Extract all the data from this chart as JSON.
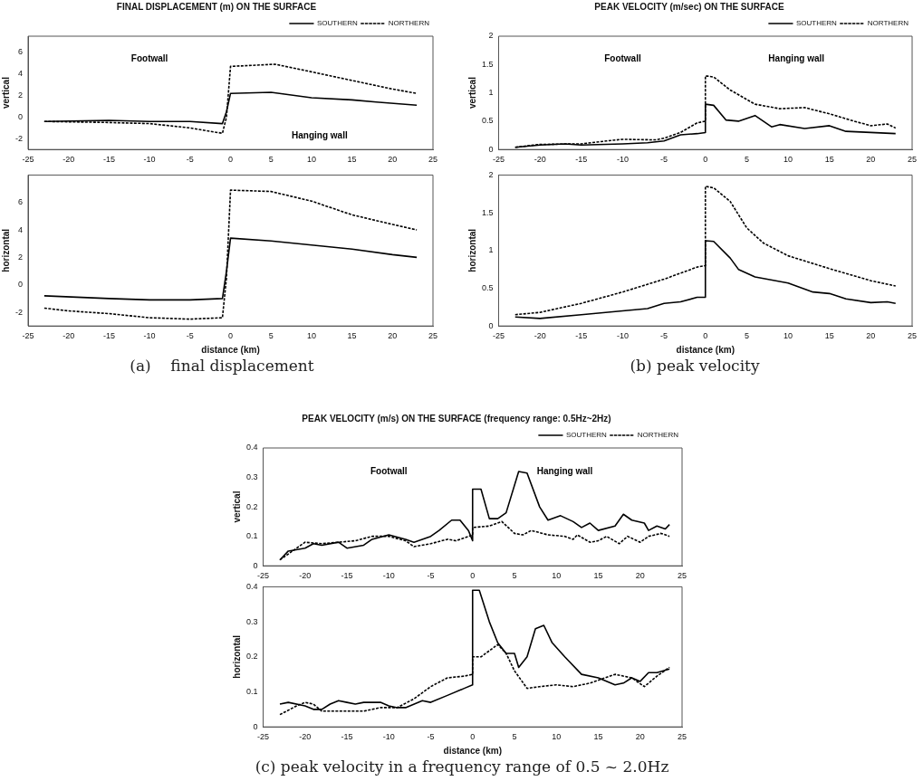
{
  "chart_data": [
    {
      "type": "line",
      "title": "FINAL DISPLACEMENT (m) ON THE SURFACE",
      "ylabel": "vertical",
      "xlim": [
        -25,
        25
      ],
      "xticks": [
        -25,
        -20,
        -15,
        -10,
        -5,
        0,
        5,
        10,
        15,
        20,
        25
      ],
      "ylim": [
        -3,
        7.5
      ],
      "yticks": [
        -2,
        0,
        2,
        4,
        6
      ],
      "legend": "top right",
      "marker": "none",
      "annotations": [
        "Footwall",
        "Hanging wall"
      ],
      "series": [
        {
          "name": "SOUTHERN",
          "color": "#000000",
          "line_style": "solid",
          "x": [
            -23,
            -15,
            -10,
            -5,
            -1,
            -0.5,
            0,
            5,
            10,
            15,
            18,
            23
          ],
          "values": [
            -0.4,
            -0.3,
            -0.4,
            -0.4,
            -0.6,
            0.5,
            2.2,
            2.3,
            1.8,
            1.6,
            1.4,
            1.1
          ]
        },
        {
          "name": "NORTHERN",
          "color": "#000000",
          "line_style": "dashed",
          "x": [
            -23,
            -15,
            -10,
            -5,
            -1,
            -0.5,
            0,
            5.5,
            10,
            15,
            20,
            23
          ],
          "values": [
            -0.4,
            -0.5,
            -0.6,
            -1.0,
            -1.5,
            0,
            4.7,
            4.9,
            4.2,
            3.4,
            2.6,
            2.2
          ]
        }
      ]
    },
    {
      "type": "line",
      "xlabel": "distance (km)",
      "ylabel": "horizontal",
      "xlim": [
        -25,
        25
      ],
      "xticks": [
        -25,
        -20,
        -15,
        -10,
        -5,
        0,
        5,
        10,
        15,
        20,
        25
      ],
      "ylim": [
        -3,
        8
      ],
      "yticks": [
        -2,
        0,
        2,
        4,
        6
      ],
      "marker": "none",
      "annotations": [
        "(a)    final displacement"
      ],
      "series": [
        {
          "color": "#000000",
          "line_style": "solid",
          "x": [
            -23,
            -15,
            -10,
            -5,
            -1,
            -0.5,
            0,
            5,
            10,
            15,
            20,
            23
          ],
          "values": [
            -0.8,
            -1.0,
            -1.1,
            -1.1,
            -1.0,
            1.0,
            3.4,
            3.2,
            2.9,
            2.6,
            2.2,
            2.0
          ]
        },
        {
          "color": "#000000",
          "line_style": "dashed",
          "x": [
            -23,
            -20,
            -15,
            -10,
            -5,
            -1,
            -0.5,
            0,
            5,
            10,
            15,
            20,
            23
          ],
          "values": [
            -1.7,
            -1.9,
            -2.1,
            -2.4,
            -2.5,
            -2.4,
            0.5,
            6.9,
            6.8,
            6.1,
            5.1,
            4.4,
            4.0
          ]
        }
      ]
    },
    {
      "type": "line",
      "title": "PEAK VELOCITY (m/sec) ON THE SURFACE",
      "ylabel": "vertical",
      "xlim": [
        -25,
        25
      ],
      "xticks": [
        -25,
        -20,
        -15,
        -10,
        -5,
        0,
        5,
        10,
        15,
        20,
        25
      ],
      "ylim": [
        0,
        2
      ],
      "yticks": [
        0,
        0.5,
        1,
        1.5,
        2
      ],
      "legend": "top right",
      "marker": "none",
      "annotations": [
        "Footwall",
        "Hanging wall"
      ],
      "series": [
        {
          "name": "SOUTHERN",
          "color": "#000000",
          "line_style": "solid",
          "x": [
            -23,
            -20,
            -17,
            -15,
            -10,
            -7,
            -5,
            -3,
            -1,
            0,
            0,
            1,
            2.5,
            4,
            6,
            8,
            9,
            12,
            15,
            17,
            20,
            23
          ],
          "values": [
            0.04,
            0.08,
            0.1,
            0.08,
            0.1,
            0.12,
            0.15,
            0.26,
            0.28,
            0.3,
            0.8,
            0.78,
            0.52,
            0.5,
            0.6,
            0.4,
            0.44,
            0.37,
            0.42,
            0.32,
            0.3,
            0.28
          ]
        },
        {
          "name": "NORTHERN",
          "color": "#000000",
          "line_style": "dashed",
          "x": [
            -23,
            -20,
            -15,
            -12,
            -10,
            -6,
            -5,
            -3,
            -1,
            0,
            0,
            1,
            3,
            6,
            9,
            12,
            15,
            18,
            20,
            22,
            23
          ],
          "values": [
            0.04,
            0.09,
            0.1,
            0.15,
            0.18,
            0.17,
            0.2,
            0.3,
            0.47,
            0.5,
            1.3,
            1.28,
            1.05,
            0.8,
            0.72,
            0.74,
            0.63,
            0.5,
            0.42,
            0.45,
            0.38
          ]
        }
      ]
    },
    {
      "type": "line",
      "xlabel": "distance (km)",
      "ylabel": "horizontal",
      "xlim": [
        -25,
        25
      ],
      "xticks": [
        -25,
        -20,
        -15,
        -10,
        -5,
        0,
        5,
        10,
        15,
        20,
        25
      ],
      "ylim": [
        0,
        2
      ],
      "yticks": [
        0,
        0.5,
        1,
        1.5,
        2
      ],
      "marker": "none",
      "annotations": [
        "(b) peak velocity"
      ],
      "series": [
        {
          "color": "#000000",
          "line_style": "solid",
          "x": [
            -23,
            -20,
            -15,
            -10,
            -7,
            -5,
            -3,
            -1,
            0,
            0,
            1,
            3,
            4,
            6,
            10,
            13,
            15,
            17,
            20,
            22,
            23
          ],
          "values": [
            0.12,
            0.1,
            0.15,
            0.2,
            0.23,
            0.3,
            0.32,
            0.38,
            0.38,
            1.13,
            1.12,
            0.9,
            0.75,
            0.65,
            0.57,
            0.45,
            0.43,
            0.36,
            0.31,
            0.32,
            0.3
          ]
        },
        {
          "color": "#000000",
          "line_style": "dashed",
          "x": [
            -23,
            -20,
            -15,
            -10,
            -5,
            -1,
            0,
            0,
            1,
            3,
            5,
            7,
            10,
            15,
            20,
            23
          ],
          "values": [
            0.15,
            0.18,
            0.3,
            0.45,
            0.62,
            0.78,
            0.8,
            1.85,
            1.83,
            1.65,
            1.3,
            1.1,
            0.93,
            0.76,
            0.6,
            0.53
          ]
        }
      ]
    },
    {
      "type": "line",
      "title": "PEAK VELOCITY (m/s) ON THE SURFACE (frequency range: 0.5Hz~2Hz)",
      "ylabel": "vertical",
      "xlim": [
        -25,
        25
      ],
      "xticks": [
        -25,
        -20,
        -15,
        -10,
        -5,
        0,
        5,
        10,
        15,
        20,
        25
      ],
      "ylim": [
        0,
        0.4
      ],
      "yticks": [
        0,
        0.1,
        0.2,
        0.3,
        0.4
      ],
      "legend": "top right",
      "marker": "none",
      "annotations": [
        "Footwall",
        "Hanging wall"
      ],
      "series": [
        {
          "name": "SOUTHERN",
          "color": "#000000",
          "line_style": "solid",
          "x": [
            -23,
            -22,
            -20,
            -19,
            -18,
            -16,
            -15,
            -13,
            -12,
            -10,
            -8,
            -7,
            -5,
            -4,
            -2.5,
            -1.5,
            -0.5,
            0,
            0,
            1,
            2,
            3,
            4,
            5.5,
            6.5,
            8,
            9,
            10.5,
            12,
            13,
            14,
            15,
            17,
            18,
            19,
            20.5,
            21,
            22,
            23,
            23.5
          ],
          "values": [
            0.02,
            0.05,
            0.06,
            0.075,
            0.07,
            0.08,
            0.06,
            0.07,
            0.09,
            0.105,
            0.09,
            0.08,
            0.1,
            0.12,
            0.155,
            0.155,
            0.12,
            0.085,
            0.26,
            0.26,
            0.16,
            0.16,
            0.18,
            0.32,
            0.315,
            0.2,
            0.155,
            0.17,
            0.15,
            0.13,
            0.145,
            0.12,
            0.135,
            0.175,
            0.155,
            0.145,
            0.12,
            0.135,
            0.125,
            0.14
          ]
        },
        {
          "name": "NORTHERN",
          "color": "#000000",
          "line_style": "dashed",
          "x": [
            -23,
            -21,
            -20,
            -18,
            -16,
            -14,
            -12,
            -10,
            -8,
            -7,
            -5,
            -3,
            -2,
            0,
            0,
            2,
            3.5,
            5,
            6,
            7,
            9,
            11,
            12,
            12.5,
            14,
            15,
            16,
            17.5,
            18.5,
            20,
            21,
            22.5,
            23.5
          ],
          "values": [
            0.02,
            0.06,
            0.08,
            0.075,
            0.08,
            0.085,
            0.1,
            0.1,
            0.085,
            0.065,
            0.075,
            0.09,
            0.085,
            0.105,
            0.13,
            0.135,
            0.15,
            0.11,
            0.105,
            0.12,
            0.105,
            0.1,
            0.09,
            0.105,
            0.08,
            0.085,
            0.1,
            0.075,
            0.1,
            0.08,
            0.1,
            0.11,
            0.1
          ]
        }
      ]
    },
    {
      "type": "line",
      "xlabel": "distance (km)",
      "ylabel": "horizontal",
      "xlim": [
        -25,
        25
      ],
      "xticks": [
        -25,
        -20,
        -15,
        -10,
        -5,
        0,
        5,
        10,
        15,
        20,
        25
      ],
      "ylim": [
        0,
        0.4
      ],
      "yticks": [
        0,
        0.1,
        0.2,
        0.3,
        0.4
      ],
      "marker": "none",
      "annotations": [
        "(c) peak velocity in a frequency range of 0.5 ~ 2.0Hz"
      ],
      "series": [
        {
          "color": "#000000",
          "line_style": "solid",
          "x": [
            -23,
            -22,
            -20,
            -19,
            -18,
            -17,
            -16,
            -15,
            -14,
            -13,
            -11,
            -10,
            -9,
            -8,
            -6,
            -5,
            -3,
            -1,
            0,
            0,
            0.8,
            2,
            3,
            4,
            5,
            5.5,
            6.5,
            7.5,
            8.5,
            9.5,
            11,
            13,
            15,
            17,
            18,
            19,
            20,
            21,
            22,
            23.5
          ],
          "values": [
            0.065,
            0.07,
            0.06,
            0.05,
            0.05,
            0.065,
            0.075,
            0.07,
            0.065,
            0.07,
            0.07,
            0.06,
            0.055,
            0.055,
            0.075,
            0.07,
            0.09,
            0.11,
            0.12,
            0.39,
            0.39,
            0.3,
            0.24,
            0.21,
            0.21,
            0.17,
            0.2,
            0.28,
            0.29,
            0.24,
            0.2,
            0.15,
            0.14,
            0.12,
            0.125,
            0.14,
            0.13,
            0.155,
            0.155,
            0.165
          ]
        },
        {
          "color": "#000000",
          "line_style": "dashed",
          "x": [
            -23,
            -21,
            -20,
            -19,
            -18,
            -15,
            -13,
            -11,
            -9,
            -7,
            -5,
            -3,
            -1,
            0,
            0,
            1,
            3,
            4,
            5,
            6.5,
            8,
            10,
            12,
            14,
            17,
            19,
            20.5,
            22,
            23.5
          ],
          "values": [
            0.035,
            0.06,
            0.07,
            0.065,
            0.045,
            0.045,
            0.045,
            0.055,
            0.055,
            0.08,
            0.115,
            0.14,
            0.145,
            0.15,
            0.2,
            0.2,
            0.235,
            0.21,
            0.16,
            0.11,
            0.115,
            0.12,
            0.115,
            0.125,
            0.15,
            0.14,
            0.115,
            0.145,
            0.17
          ]
        }
      ]
    }
  ]
}
